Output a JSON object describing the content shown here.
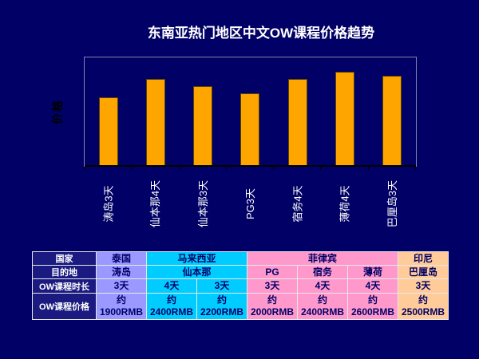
{
  "colors": {
    "background": "#000066",
    "bar_fill": "#FFA500",
    "bar_border": "#5C4500",
    "plot_border": "#8585A8",
    "axis_line": "#000000",
    "title_text": "#FFFFFF",
    "x_label_text": "#FFFFFF",
    "y_label_text": "#000000",
    "table_header_bg": "#1A1A80",
    "table_header_text": "#FFFFFF",
    "table_cell_text": "#000066",
    "thailand_col": "#9999FF",
    "malaysia_col": "#00CCFF",
    "philippines_col": "#FF99CC",
    "indonesia_col": "#FFCC99"
  },
  "chart_data": {
    "type": "bar",
    "title": "东南亚热门地区中文OW课程价格趋势",
    "xlabel": "",
    "ylabel": "价格",
    "categories": [
      "涛岛3天",
      "仙本那4天",
      "仙本那3天",
      "PG3天",
      "宿务4天",
      "薄荷4天",
      "巴厘岛3天"
    ],
    "values": [
      1900,
      2400,
      2200,
      2000,
      2400,
      2600,
      2500
    ],
    "ylim": [
      0,
      3000
    ],
    "grid": false,
    "legend": false,
    "x_tick_label_rotation": 90,
    "bar_color": "#FFA500"
  },
  "table": {
    "headers": [
      "国家",
      "目的地",
      "OW课程时长",
      "OW课程价格"
    ],
    "countries": {
      "thailand": "泰国",
      "malaysia": "马来西亚",
      "philippines": "菲律宾",
      "indonesia": "印尼"
    },
    "destinations": {
      "koh_tao": "涛岛",
      "semporna": "仙本那",
      "pg": "PG",
      "cebu": "宿务",
      "bohol": "薄荷",
      "bali": "巴厘岛"
    },
    "durations": [
      "3天",
      "4天",
      "3天",
      "3天",
      "4天",
      "4天",
      "3天"
    ],
    "prices": [
      {
        "approx": "约",
        "amount": "1900RMB"
      },
      {
        "approx": "约",
        "amount": "2400RMB"
      },
      {
        "approx": "约",
        "amount": "2200RMB"
      },
      {
        "approx": "约",
        "amount": "2000RMB"
      },
      {
        "approx": "约",
        "amount": "2400RMB"
      },
      {
        "approx": "约",
        "amount": "2600RMB"
      },
      {
        "approx": "约",
        "amount": "2500RMB"
      }
    ]
  }
}
